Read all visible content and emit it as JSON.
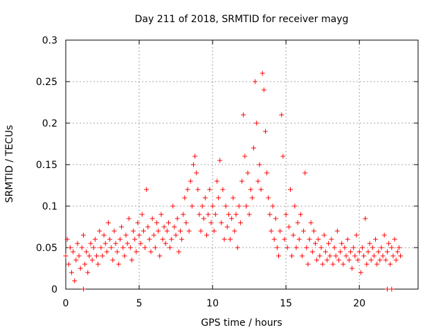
{
  "chart_data": {
    "type": "scatter",
    "title": "Day 211 of 2018, SRMTID for receiver mayg",
    "xlabel": "GPS time / hours",
    "ylabel": "SRMTID / TECUs",
    "xlim": [
      0,
      24
    ],
    "ylim": [
      0,
      0.3
    ],
    "x_ticks": [
      0,
      5,
      10,
      15,
      20
    ],
    "x_tick_labels": [
      "0",
      "5",
      "10",
      "15",
      "20"
    ],
    "y_ticks": [
      0,
      0.05,
      0.1,
      0.15,
      0.2,
      0.25,
      0.3
    ],
    "y_tick_labels": [
      "0",
      "0.05",
      "0.1",
      "0.15",
      "0.2",
      "0.25",
      "0.3"
    ],
    "grid": true,
    "marker": "+",
    "color": "#ff0000",
    "series": [
      {
        "name": "SRMTID",
        "points": [
          [
            0.0,
            0.04
          ],
          [
            0.1,
            0.06
          ],
          [
            0.2,
            0.03
          ],
          [
            0.3,
            0.05
          ],
          [
            0.4,
            0.02
          ],
          [
            0.5,
            0.045
          ],
          [
            0.6,
            0.01
          ],
          [
            0.7,
            0.035
          ],
          [
            0.8,
            0.055
          ],
          [
            0.9,
            0.04
          ],
          [
            1.0,
            0.025
          ],
          [
            1.1,
            0.05
          ],
          [
            1.2,
            0.065
          ],
          [
            1.3,
            0.03
          ],
          [
            1.4,
            0.045
          ],
          [
            1.5,
            0.02
          ],
          [
            1.6,
            0.04
          ],
          [
            1.7,
            0.055
          ],
          [
            1.8,
            0.035
          ],
          [
            1.9,
            0.05
          ],
          [
            2.0,
            0.06
          ],
          [
            2.1,
            0.04
          ],
          [
            2.2,
            0.03
          ],
          [
            2.3,
            0.07
          ],
          [
            2.4,
            0.05
          ],
          [
            2.5,
            0.04
          ],
          [
            2.6,
            0.065
          ],
          [
            2.7,
            0.055
          ],
          [
            2.8,
            0.045
          ],
          [
            2.9,
            0.08
          ],
          [
            3.0,
            0.06
          ],
          [
            3.1,
            0.05
          ],
          [
            3.2,
            0.035
          ],
          [
            3.3,
            0.07
          ],
          [
            3.4,
            0.055
          ],
          [
            3.5,
            0.045
          ],
          [
            3.6,
            0.03
          ],
          [
            3.7,
            0.06
          ],
          [
            3.8,
            0.075
          ],
          [
            3.9,
            0.05
          ],
          [
            4.0,
            0.04
          ],
          [
            4.1,
            0.065
          ],
          [
            4.2,
            0.055
          ],
          [
            4.3,
            0.085
          ],
          [
            4.4,
            0.05
          ],
          [
            4.5,
            0.035
          ],
          [
            4.6,
            0.07
          ],
          [
            4.7,
            0.06
          ],
          [
            4.8,
            0.045
          ],
          [
            4.9,
            0.08
          ],
          [
            5.0,
            0.065
          ],
          [
            5.1,
            0.055
          ],
          [
            5.2,
            0.09
          ],
          [
            5.3,
            0.07
          ],
          [
            5.4,
            0.05
          ],
          [
            5.5,
            0.12
          ],
          [
            5.6,
            0.075
          ],
          [
            5.7,
            0.06
          ],
          [
            5.8,
            0.045
          ],
          [
            5.9,
            0.085
          ],
          [
            6.0,
            0.065
          ],
          [
            6.1,
            0.05
          ],
          [
            6.2,
            0.08
          ],
          [
            6.3,
            0.07
          ],
          [
            6.4,
            0.04
          ],
          [
            6.5,
            0.09
          ],
          [
            6.6,
            0.06
          ],
          [
            6.7,
            0.075
          ],
          [
            6.8,
            0.055
          ],
          [
            6.9,
            0.07
          ],
          [
            7.0,
            0.08
          ],
          [
            7.1,
            0.05
          ],
          [
            7.2,
            0.06
          ],
          [
            7.3,
            0.1
          ],
          [
            7.4,
            0.075
          ],
          [
            7.5,
            0.065
          ],
          [
            7.6,
            0.085
          ],
          [
            7.7,
            0.045
          ],
          [
            7.8,
            0.07
          ],
          [
            7.9,
            0.06
          ],
          [
            8.0,
            0.09
          ],
          [
            8.1,
            0.11
          ],
          [
            8.2,
            0.08
          ],
          [
            8.3,
            0.12
          ],
          [
            8.4,
            0.07
          ],
          [
            8.5,
            0.13
          ],
          [
            8.6,
            0.1
          ],
          [
            8.7,
            0.15
          ],
          [
            8.8,
            0.16
          ],
          [
            8.9,
            0.14
          ],
          [
            9.0,
            0.12
          ],
          [
            9.1,
            0.09
          ],
          [
            9.2,
            0.07
          ],
          [
            9.3,
            0.1
          ],
          [
            9.4,
            0.085
          ],
          [
            9.5,
            0.11
          ],
          [
            9.6,
            0.065
          ],
          [
            9.7,
            0.09
          ],
          [
            9.8,
            0.12
          ],
          [
            9.9,
            0.08
          ],
          [
            10.0,
            0.1
          ],
          [
            10.1,
            0.07
          ],
          [
            10.2,
            0.09
          ],
          [
            10.3,
            0.13
          ],
          [
            10.4,
            0.11
          ],
          [
            10.5,
            0.155
          ],
          [
            10.6,
            0.08
          ],
          [
            10.7,
            0.12
          ],
          [
            10.8,
            0.06
          ],
          [
            10.9,
            0.1
          ],
          [
            11.0,
            0.075
          ],
          [
            11.1,
            0.09
          ],
          [
            11.2,
            0.06
          ],
          [
            11.3,
            0.085
          ],
          [
            11.4,
            0.11
          ],
          [
            11.5,
            0.07
          ],
          [
            11.6,
            0.09
          ],
          [
            11.7,
            0.05
          ],
          [
            11.8,
            0.1
          ],
          [
            11.9,
            0.08
          ],
          [
            12.0,
            0.13
          ],
          [
            12.1,
            0.21
          ],
          [
            12.2,
            0.16
          ],
          [
            12.3,
            0.1
          ],
          [
            12.4,
            0.14
          ],
          [
            12.5,
            0.09
          ],
          [
            12.6,
            0.12
          ],
          [
            12.7,
            0.11
          ],
          [
            12.8,
            0.17
          ],
          [
            12.9,
            0.25
          ],
          [
            13.0,
            0.2
          ],
          [
            13.1,
            0.13
          ],
          [
            13.2,
            0.15
          ],
          [
            13.3,
            0.12
          ],
          [
            13.4,
            0.26
          ],
          [
            13.5,
            0.24
          ],
          [
            13.6,
            0.19
          ],
          [
            13.7,
            0.14
          ],
          [
            13.8,
            0.11
          ],
          [
            13.9,
            0.09
          ],
          [
            14.0,
            0.07
          ],
          [
            14.1,
            0.1
          ],
          [
            14.2,
            0.06
          ],
          [
            14.3,
            0.085
          ],
          [
            14.4,
            0.05
          ],
          [
            14.5,
            0.04
          ],
          [
            14.6,
            0.07
          ],
          [
            14.7,
            0.21
          ],
          [
            14.8,
            0.16
          ],
          [
            14.9,
            0.06
          ],
          [
            15.0,
            0.09
          ],
          [
            15.1,
            0.05
          ],
          [
            15.2,
            0.075
          ],
          [
            15.3,
            0.12
          ],
          [
            15.4,
            0.04
          ],
          [
            15.5,
            0.065
          ],
          [
            15.6,
            0.1
          ],
          [
            15.7,
            0.05
          ],
          [
            15.8,
            0.08
          ],
          [
            15.9,
            0.06
          ],
          [
            16.0,
            0.09
          ],
          [
            16.1,
            0.04
          ],
          [
            16.2,
            0.07
          ],
          [
            16.3,
            0.14
          ],
          [
            16.4,
            0.05
          ],
          [
            16.5,
            0.03
          ],
          [
            16.6,
            0.06
          ],
          [
            16.7,
            0.08
          ],
          [
            16.8,
            0.045
          ],
          [
            16.9,
            0.07
          ],
          [
            17.0,
            0.055
          ],
          [
            17.1,
            0.035
          ],
          [
            17.2,
            0.06
          ],
          [
            17.3,
            0.04
          ],
          [
            17.4,
            0.05
          ],
          [
            17.5,
            0.03
          ],
          [
            17.6,
            0.065
          ],
          [
            17.7,
            0.045
          ],
          [
            17.8,
            0.035
          ],
          [
            17.9,
            0.055
          ],
          [
            18.0,
            0.04
          ],
          [
            18.1,
            0.06
          ],
          [
            18.2,
            0.03
          ],
          [
            18.3,
            0.05
          ],
          [
            18.4,
            0.04
          ],
          [
            18.5,
            0.07
          ],
          [
            18.6,
            0.035
          ],
          [
            18.7,
            0.045
          ],
          [
            18.8,
            0.055
          ],
          [
            18.9,
            0.03
          ],
          [
            19.0,
            0.05
          ],
          [
            19.1,
            0.04
          ],
          [
            19.2,
            0.06
          ],
          [
            19.3,
            0.035
          ],
          [
            19.4,
            0.045
          ],
          [
            19.5,
            0.025
          ],
          [
            19.6,
            0.05
          ],
          [
            19.7,
            0.04
          ],
          [
            19.8,
            0.065
          ],
          [
            19.9,
            0.035
          ],
          [
            20.0,
            0.045
          ],
          [
            20.1,
            0.02
          ],
          [
            20.2,
            0.05
          ],
          [
            20.3,
            0.04
          ],
          [
            20.4,
            0.085
          ],
          [
            20.5,
            0.03
          ],
          [
            20.6,
            0.045
          ],
          [
            20.7,
            0.055
          ],
          [
            20.8,
            0.035
          ],
          [
            20.9,
            0.05
          ],
          [
            21.0,
            0.04
          ],
          [
            21.1,
            0.06
          ],
          [
            21.2,
            0.03
          ],
          [
            21.3,
            0.045
          ],
          [
            21.4,
            0.035
          ],
          [
            21.5,
            0.05
          ],
          [
            21.6,
            0.04
          ],
          [
            21.7,
            0.065
          ],
          [
            21.8,
            0.035
          ],
          [
            21.9,
            0.045
          ],
          [
            22.0,
            0.055
          ],
          [
            22.1,
            0.03
          ],
          [
            22.2,
            0.05
          ],
          [
            22.3,
            0.04
          ],
          [
            22.4,
            0.06
          ],
          [
            22.5,
            0.035
          ],
          [
            22.6,
            0.045
          ],
          [
            22.7,
            0.05
          ],
          [
            22.8,
            0.04
          ],
          [
            1.2,
            0.0
          ],
          [
            21.9,
            0.0
          ],
          [
            22.2,
            0.0
          ]
        ]
      }
    ]
  }
}
